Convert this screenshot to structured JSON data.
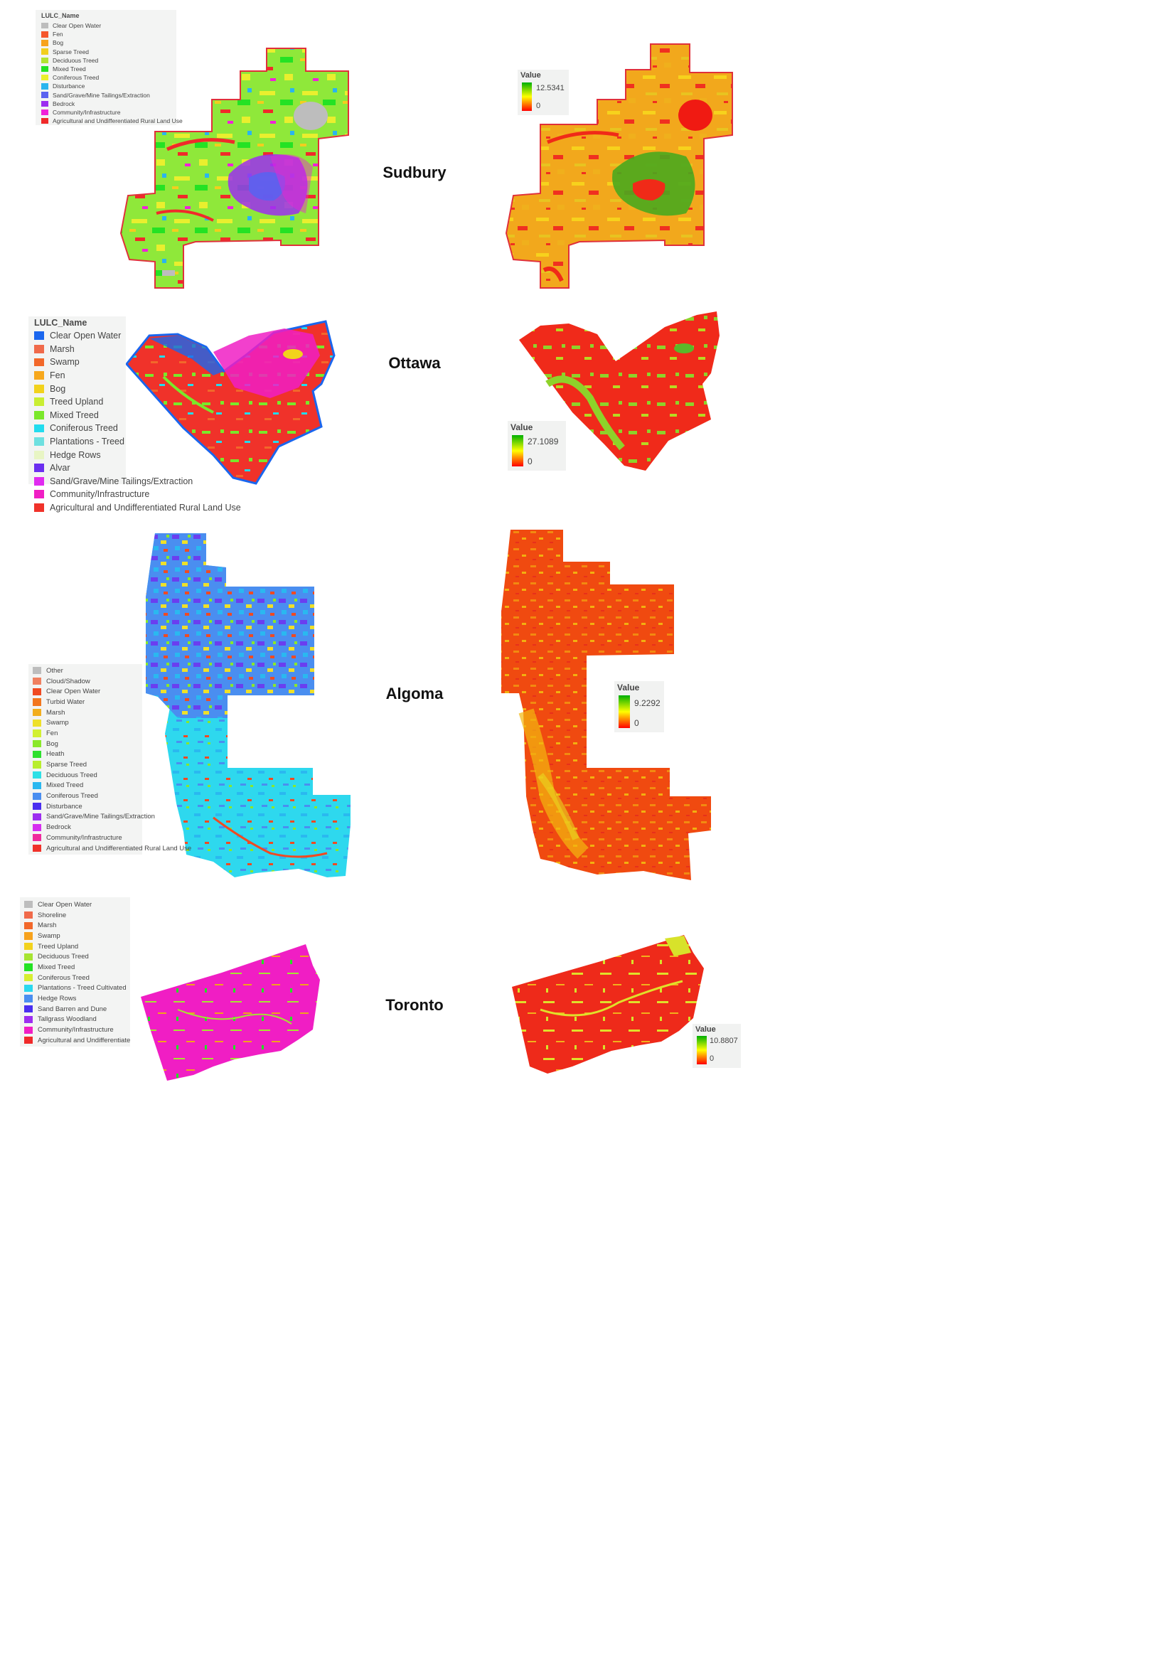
{
  "regions": [
    {
      "name": "Sudbury",
      "legend_title": "LULC_Name",
      "lulc_classes": [
        {
          "label": "Clear Open Water",
          "color": "#bdbdbd"
        },
        {
          "label": "Fen",
          "color": "#f5572c"
        },
        {
          "label": "Bog",
          "color": "#f7a21c"
        },
        {
          "label": "Sparse Treed",
          "color": "#f2ce1e"
        },
        {
          "label": "Deciduous Treed",
          "color": "#b2e432"
        },
        {
          "label": "Mixed Treed",
          "color": "#24e224"
        },
        {
          "label": "Coniferous Treed",
          "color": "#e9ef2e"
        },
        {
          "label": "Disturbance",
          "color": "#2ab5ee"
        },
        {
          "label": "Sand/Grave/Mine Tailings/Extraction",
          "color": "#5b62f0"
        },
        {
          "label": "Bedrock",
          "color": "#9c2ef0"
        },
        {
          "label": "Community/Infrastructure",
          "color": "#f022d8"
        },
        {
          "label": "Agricultural and Undifferentiated Rural Land Use",
          "color": "#f02a2a"
        }
      ],
      "value_legend": {
        "title": "Value",
        "max": "12.5341",
        "min": "0"
      }
    },
    {
      "name": "Ottawa",
      "legend_title": "LULC_Name",
      "lulc_classes": [
        {
          "label": "Clear Open Water",
          "color": "#1a66ee"
        },
        {
          "label": "Marsh",
          "color": "#f06a4a"
        },
        {
          "label": "Swamp",
          "color": "#f2682a"
        },
        {
          "label": "Fen",
          "color": "#f7a81c"
        },
        {
          "label": "Bog",
          "color": "#f2d21c"
        },
        {
          "label": "Treed Upland",
          "color": "#c9ee32"
        },
        {
          "label": "Mixed Treed",
          "color": "#7ae82a"
        },
        {
          "label": "Coniferous Treed",
          "color": "#22dcee"
        },
        {
          "label": "Plantations - Treed",
          "color": "#6ee0e0"
        },
        {
          "label": "Hedge Rows",
          "color": "#e8f5c4"
        },
        {
          "label": "Alvar",
          "color": "#6b2ef0"
        },
        {
          "label": "Sand/Grave/Mine Tailings/Extraction",
          "color": "#e02af0"
        },
        {
          "label": "Community/Infrastructure",
          "color": "#f01ec4"
        },
        {
          "label": "Agricultural and Undifferentiated Rural Land Use",
          "color": "#f0322a"
        }
      ],
      "value_legend": {
        "title": "Value",
        "max": "27.1089",
        "min": "0"
      }
    },
    {
      "name": "Algoma",
      "legend_title": "",
      "lulc_classes": [
        {
          "label": "Other",
          "color": "#bdbdbd"
        },
        {
          "label": "Cloud/Shadow",
          "color": "#f08060"
        },
        {
          "label": "Clear Open Water",
          "color": "#f04a22"
        },
        {
          "label": "Turbid Water",
          "color": "#f2761e"
        },
        {
          "label": "Marsh",
          "color": "#f2ae1e"
        },
        {
          "label": "Swamp",
          "color": "#eee02a"
        },
        {
          "label": "Fen",
          "color": "#d2f032"
        },
        {
          "label": "Bog",
          "color": "#8ae82a"
        },
        {
          "label": "Heath",
          "color": "#2ee02e"
        },
        {
          "label": "Sparse Treed",
          "color": "#b8ee2e"
        },
        {
          "label": "Deciduous Treed",
          "color": "#2ee0e6"
        },
        {
          "label": "Mixed Treed",
          "color": "#2ab8f0"
        },
        {
          "label": "Coniferous Treed",
          "color": "#4a8ef0"
        },
        {
          "label": "Disturbance",
          "color": "#4a2ef0"
        },
        {
          "label": "Sand/Grave/Mine Tailings/Extraction",
          "color": "#9c2ef0"
        },
        {
          "label": "Bedrock",
          "color": "#d62ef0"
        },
        {
          "label": "Community/Infrastructure",
          "color": "#f02a9c"
        },
        {
          "label": "Agricultural and Undifferentiated Rural Land Use",
          "color": "#f0322a"
        }
      ],
      "value_legend": {
        "title": "Value",
        "max": "9.2292",
        "min": "0"
      }
    },
    {
      "name": "Toronto",
      "legend_title": "",
      "lulc_classes": [
        {
          "label": "Clear Open Water",
          "color": "#bdbdbd"
        },
        {
          "label": "Shoreline",
          "color": "#f06a4a"
        },
        {
          "label": "Marsh",
          "color": "#f2682a"
        },
        {
          "label": "Swamp",
          "color": "#f7a21c"
        },
        {
          "label": "Treed Upland",
          "color": "#f2d21c"
        },
        {
          "label": "Deciduous Treed",
          "color": "#a6e432"
        },
        {
          "label": "Mixed Treed",
          "color": "#24e224"
        },
        {
          "label": "Coniferous Treed",
          "color": "#d6ee30"
        },
        {
          "label": "Plantations - Treed Cultivated",
          "color": "#2ad8ee"
        },
        {
          "label": "Hedge Rows",
          "color": "#4a8ef0"
        },
        {
          "label": "Sand Barren and Dune",
          "color": "#4a2ef0"
        },
        {
          "label": "Tallgrass Woodland",
          "color": "#9c2ef0"
        },
        {
          "label": "Community/Infrastructure",
          "color": "#f01ec4"
        },
        {
          "label": "Agricultural and Undifferentiate",
          "color": "#f02a2a"
        }
      ],
      "value_legend": {
        "title": "Value",
        "max": "10.8807",
        "min": "0"
      }
    }
  ],
  "colors": {
    "boundary": "#e0303a",
    "ramp_high": "#00b000",
    "ramp_mid": "#ffff00",
    "ramp_low": "#ff0000"
  }
}
